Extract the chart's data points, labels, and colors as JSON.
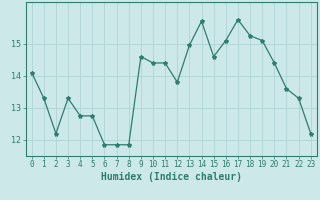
{
  "x": [
    0,
    1,
    2,
    3,
    4,
    5,
    6,
    7,
    8,
    9,
    10,
    11,
    12,
    13,
    14,
    15,
    16,
    17,
    18,
    19,
    20,
    21,
    22,
    23
  ],
  "y": [
    14.1,
    13.3,
    12.2,
    13.3,
    12.75,
    12.75,
    11.85,
    11.85,
    11.85,
    14.6,
    14.4,
    14.4,
    13.8,
    14.95,
    15.7,
    14.6,
    15.1,
    15.75,
    15.25,
    15.1,
    14.4,
    13.6,
    13.3,
    12.2
  ],
  "line_color": "#2e7d6e",
  "marker": "*",
  "marker_size": 3,
  "bg_color": "#cce8e8",
  "grid_color": "#afd4d4",
  "axis_color": "#2e7d6e",
  "tick_color": "#2e7d6e",
  "xlabel": "Humidex (Indice chaleur)",
  "xlabel_fontsize": 7,
  "xlabel_color": "#2e7d6e",
  "xtick_fontsize": 5.5,
  "ytick_fontsize": 6,
  "ylim": [
    11.5,
    16.3
  ],
  "yticks": [
    12,
    13,
    14,
    15
  ],
  "xlim": [
    -0.5,
    23.5
  ],
  "title": ""
}
